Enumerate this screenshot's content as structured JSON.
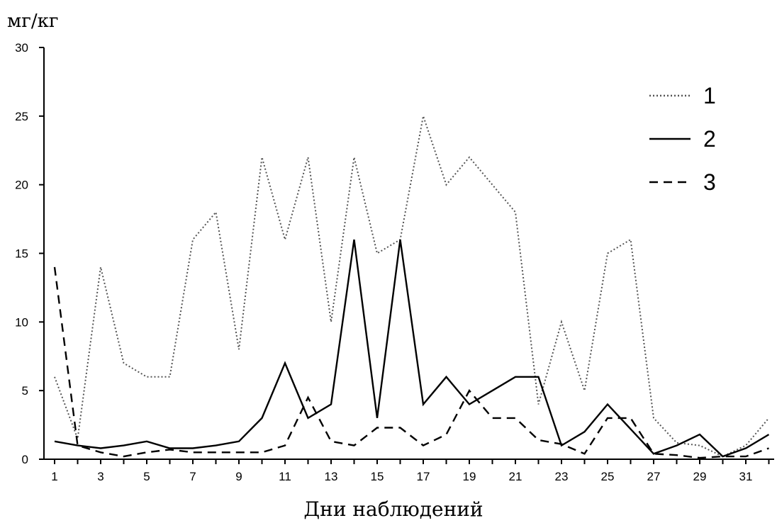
{
  "chart_data": {
    "type": "line",
    "ylabel": "мг/кг",
    "xlabel": "Дни наблюдений",
    "ylim": [
      0,
      30
    ],
    "yticks": [
      0,
      5,
      10,
      15,
      20,
      25,
      30
    ],
    "xlim": [
      1,
      32
    ],
    "xticks": [
      1,
      3,
      5,
      7,
      9,
      11,
      13,
      15,
      17,
      19,
      21,
      23,
      25,
      27,
      29,
      31
    ],
    "x": [
      1,
      2,
      3,
      4,
      5,
      6,
      7,
      8,
      9,
      10,
      11,
      12,
      13,
      14,
      15,
      16,
      17,
      18,
      19,
      20,
      21,
      22,
      23,
      24,
      25,
      26,
      27,
      28,
      29,
      30,
      31,
      32
    ],
    "grid": false,
    "legend_position": "top-right",
    "series": [
      {
        "name": "1",
        "style": "dotted",
        "color": "#555555",
        "values": [
          6,
          1.5,
          14,
          7,
          6,
          6,
          16,
          18,
          8,
          22,
          16,
          22,
          10,
          22,
          15,
          16,
          25,
          20,
          22,
          20,
          18,
          4,
          10,
          5,
          15,
          16,
          3,
          1.2,
          1,
          0.2,
          1,
          3
        ]
      },
      {
        "name": "2",
        "style": "solid",
        "color": "#000000",
        "values": [
          1.3,
          1,
          0.8,
          1,
          1.3,
          0.8,
          0.8,
          1,
          1.3,
          3,
          7,
          3,
          4,
          16,
          3,
          16,
          4,
          6,
          4,
          5,
          6,
          6,
          1,
          2,
          4,
          2.2,
          0.4,
          1,
          1.8,
          0.2,
          0.8,
          1.8
        ]
      },
      {
        "name": "3",
        "style": "dashed",
        "color": "#000000",
        "values": [
          14,
          1,
          0.5,
          0.2,
          0.5,
          0.7,
          0.5,
          0.5,
          0.5,
          0.5,
          1,
          4.5,
          1.3,
          1,
          2.3,
          2.3,
          1,
          1.8,
          5,
          3,
          3,
          1.4,
          1.1,
          0.4,
          3,
          3,
          0.4,
          0.3,
          0.1,
          0.2,
          0.2,
          0.8
        ]
      }
    ]
  }
}
